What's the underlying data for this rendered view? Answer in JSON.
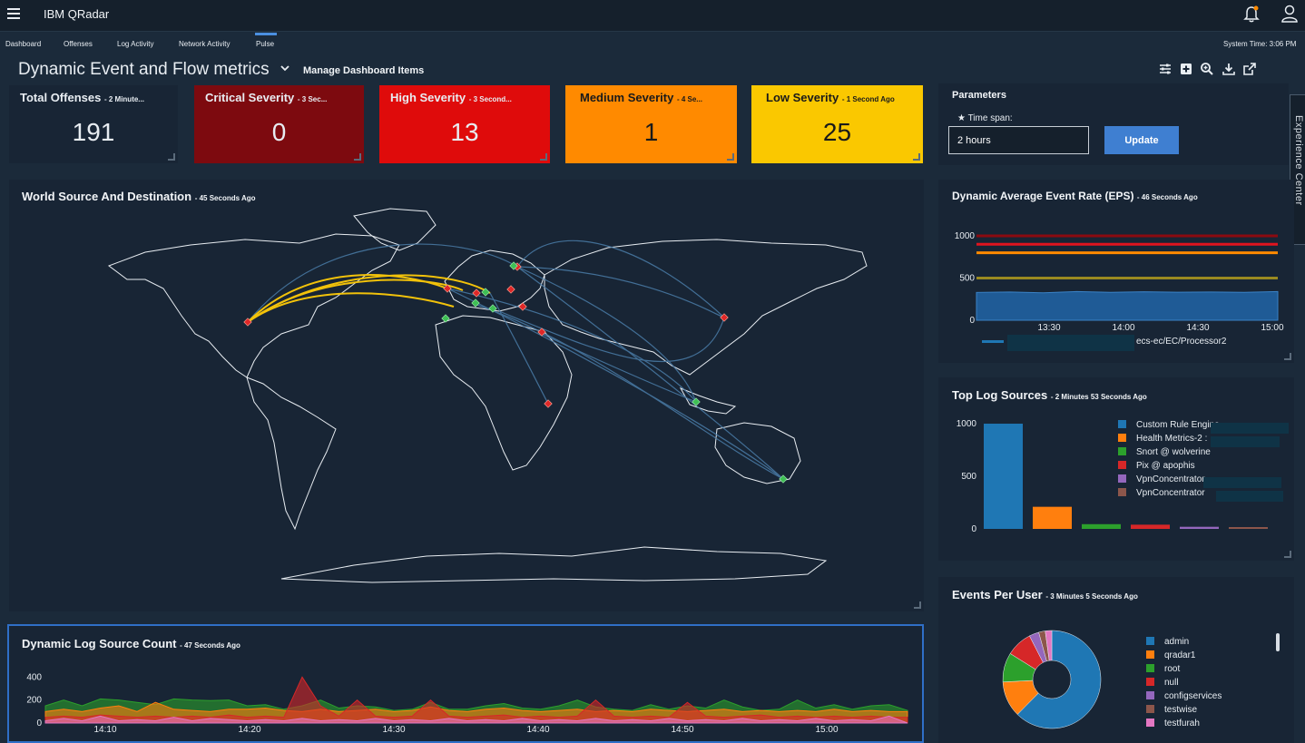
{
  "header": {
    "app_title": "IBM QRadar"
  },
  "nav": {
    "tabs": [
      {
        "label": "Dashboard"
      },
      {
        "label": "Offenses"
      },
      {
        "label": "Log Activity"
      },
      {
        "label": "Network Activity"
      },
      {
        "label": "Pulse"
      }
    ],
    "active_tab": "Pulse",
    "system_time": "System Time: 3:06 PM"
  },
  "dashboard": {
    "title": "Dynamic Event and Flow metrics",
    "manage_label": "Manage Dashboard Items"
  },
  "cards": [
    {
      "title": "Total Offenses",
      "age": "- 2 Minute...",
      "value": "191",
      "color": "#182535"
    },
    {
      "title": "Critical Severity",
      "age": "- 3 Sec...",
      "value": "0",
      "color": "#7d0a0f"
    },
    {
      "title": "High Severity",
      "age": "- 3 Second...",
      "value": "13",
      "color": "#df0b0b"
    },
    {
      "title": "Medium Severity",
      "age": "- 4 Se...",
      "value": "1",
      "color": "#ff8a00"
    },
    {
      "title": "Low Severity",
      "age": "- 1 Second Ago",
      "value": "25",
      "color": "#fac800"
    }
  ],
  "parameters": {
    "title": "Parameters",
    "time_span_label": "★ Time span:",
    "time_span_value": "2 hours",
    "update_label": "Update"
  },
  "experience_center": "Experience Center",
  "map_panel": {
    "title": "World Source And Destination",
    "age": "- 45 Seconds Ago"
  },
  "eps_panel": {
    "title": "Dynamic Average Event Rate (EPS)",
    "age": "- 46 Seconds Ago",
    "legend_visible": "ecs-ec/EC/Processor2"
  },
  "top_log_panel": {
    "title": "Top Log Sources",
    "age": "- 2 Minutes 53 Seconds Ago"
  },
  "events_user_panel": {
    "title": "Events Per User",
    "age": "- 3 Minutes 5 Seconds Ago"
  },
  "log_count_panel": {
    "title": "Dynamic Log Source Count",
    "age": "- 47 Seconds Ago"
  },
  "chart_data": [
    {
      "id": "eps",
      "type": "line",
      "x_ticks": [
        "13:30",
        "14:00",
        "14:30",
        "15:00"
      ],
      "y_ticks": [
        0,
        500,
        1000
      ],
      "ylim": [
        0,
        1000
      ],
      "series": [
        {
          "color": "#8b0a10",
          "values": [
            1000,
            1000
          ]
        },
        {
          "color": "#e0141e",
          "values": [
            900,
            900
          ]
        },
        {
          "color": "#ff8a00",
          "values": [
            800,
            800
          ]
        },
        {
          "color": "#9a8a20",
          "values": [
            500,
            500
          ]
        },
        {
          "name": "ecs-ec/EC/Processor2",
          "color": "#1f5b96",
          "values": [
            330,
            335,
            325,
            340,
            330,
            338,
            332,
            335,
            330,
            340
          ]
        }
      ]
    },
    {
      "id": "top_log_sources",
      "type": "bar",
      "categories": [
        "Custom Rule Engine-",
        "Health Metrics-2 :",
        "Snort @ wolverine",
        "Pix @ apophis",
        "VpnConcentrator",
        "VpnConcentrator"
      ],
      "values": [
        1000,
        210,
        45,
        40,
        20,
        15
      ],
      "colors": [
        "#1f77b4",
        "#ff7f0e",
        "#2ca02c",
        "#d62728",
        "#9467bd",
        "#8c564b"
      ],
      "y_ticks": [
        0,
        500,
        1000
      ],
      "ylim": [
        0,
        1000
      ]
    },
    {
      "id": "events_per_user",
      "type": "pie",
      "labels": [
        "admin",
        "qradar1",
        "root",
        "null",
        "configservices",
        "testwise",
        "testfurah"
      ],
      "values": [
        58,
        11,
        9,
        8,
        3,
        2,
        2
      ],
      "colors": [
        "#1f77b4",
        "#ff7f0e",
        "#2ca02c",
        "#d62728",
        "#9467bd",
        "#8c564b",
        "#e377c2"
      ]
    },
    {
      "id": "log_source_count",
      "type": "area",
      "x_ticks": [
        "14:10",
        "14:20",
        "14:30",
        "14:40",
        "14:50",
        "15:00"
      ],
      "y_ticks": [
        0,
        200,
        400
      ],
      "ylim": [
        0,
        450
      ],
      "series": [
        {
          "color": "#2ca02c",
          "values": [
            150,
            200,
            150,
            210,
            200,
            180,
            160,
            210,
            200,
            195,
            200,
            150,
            160,
            120,
            150,
            200,
            130,
            150,
            140,
            110,
            120,
            180,
            120,
            120,
            150,
            170,
            130,
            120,
            150,
            200,
            140,
            120,
            110,
            160,
            120,
            150,
            130,
            200,
            140,
            110,
            120,
            200,
            130,
            160,
            120,
            150,
            160,
            110
          ]
        },
        {
          "color": "#ff7f0e",
          "values": [
            100,
            120,
            100,
            130,
            150,
            100,
            180,
            120,
            110,
            100,
            120,
            120,
            130,
            110,
            100,
            120,
            100,
            110,
            120,
            100,
            110,
            140,
            110,
            100,
            120,
            130,
            110,
            100,
            110,
            120,
            100,
            110,
            100,
            120,
            110,
            100,
            110,
            120,
            100,
            110,
            100,
            110,
            100,
            120,
            100,
            110,
            100,
            100
          ]
        },
        {
          "color": "#d62728",
          "values": [
            50,
            60,
            50,
            70,
            60,
            50,
            60,
            50,
            60,
            50,
            70,
            50,
            60,
            50,
            400,
            150,
            60,
            200,
            60,
            50,
            60,
            200,
            60,
            50,
            60,
            70,
            50,
            60,
            50,
            60,
            200,
            60,
            50,
            60,
            50,
            180,
            60,
            50,
            60,
            70,
            50,
            60,
            50,
            60,
            50,
            60,
            50,
            50
          ]
        },
        {
          "color": "#e377c2",
          "values": [
            20,
            40,
            20,
            60,
            20,
            30,
            20,
            50,
            20,
            40,
            30,
            20,
            30,
            20,
            40,
            20,
            30,
            20,
            40,
            20,
            30,
            20,
            40,
            20,
            30,
            20,
            40,
            20,
            30,
            20,
            40,
            20,
            30,
            20,
            40,
            20,
            30,
            20,
            40,
            20,
            30,
            20,
            40,
            20,
            30,
            20,
            60,
            0
          ]
        }
      ]
    }
  ]
}
